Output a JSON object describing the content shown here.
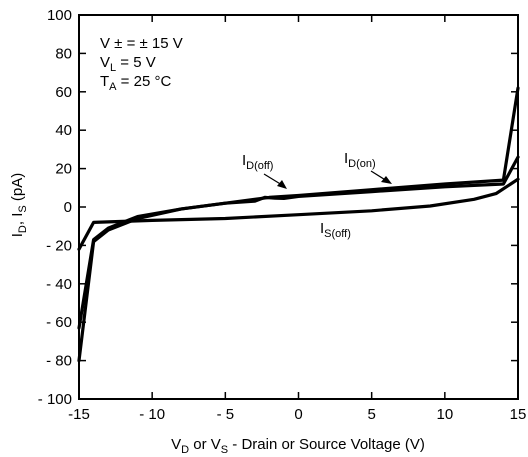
{
  "chart_data": {
    "type": "line",
    "xlabel": "V_D or V_S - Drain or Source Voltage (V)",
    "xlabel_parts": {
      "v1": "V",
      "v1_sub": "D",
      "mid": " or V",
      "v2_sub": "S",
      "rest": " - Drain or Source Voltage (V)"
    },
    "ylabel": "I_D, I_S (pA)",
    "ylabel_parts": {
      "i1": "I",
      "i1_sub": "D",
      "mid": ", I",
      "i2_sub": "S",
      "rest": " (pA)"
    },
    "xlim": [
      -15,
      15
    ],
    "ylim": [
      -100,
      100
    ],
    "x_ticks": [
      -15,
      -10,
      -5,
      0,
      5,
      10,
      15
    ],
    "x_tick_labels": [
      "-15",
      "- 10",
      "- 5",
      "0",
      "5",
      "10",
      "15"
    ],
    "y_ticks": [
      -100,
      -80,
      -60,
      -40,
      -20,
      0,
      20,
      40,
      60,
      80,
      100
    ],
    "y_tick_labels": [
      "- 100",
      "- 80",
      "- 60",
      "- 40",
      "- 20",
      "0",
      "20",
      "40",
      "60",
      "80",
      "100"
    ],
    "grid": false,
    "conditions": [
      {
        "main": "V ± = ± 15 V",
        "sub": "",
        "tail": ""
      },
      {
        "main": "V",
        "sub": "L",
        "tail": " = 5 V"
      },
      {
        "main": "T",
        "sub": "A",
        "tail": " = 25 °C"
      }
    ],
    "series": [
      {
        "name": "I_D(off)",
        "label_main": "I",
        "label_sub": "D(off)",
        "x": [
          -15,
          -14,
          -13,
          -11,
          -8,
          -5,
          -3,
          -2.3,
          -1.6,
          -1,
          0,
          5,
          10,
          14,
          15
        ],
        "y": [
          -63,
          -17,
          -11,
          -5,
          -1,
          2,
          3,
          5,
          4.6,
          4.5,
          5.5,
          8,
          10.5,
          12,
          26
        ]
      },
      {
        "name": "I_D(on)",
        "label_main": "I",
        "label_sub": "D(on)",
        "x": [
          -15,
          -14,
          -13,
          -11,
          -8,
          -5,
          -3,
          -2,
          0,
          5,
          10,
          14,
          15
        ],
        "y": [
          -80,
          -18,
          -12,
          -6,
          -1,
          2,
          4,
          5,
          6,
          9,
          12,
          14,
          62
        ]
      },
      {
        "name": "I_S(off)",
        "label_main": "I",
        "label_sub": "S(off)",
        "x": [
          -15,
          -14,
          -12,
          -10,
          -5,
          0,
          5,
          9,
          12,
          13.5,
          14.5,
          15
        ],
        "y": [
          -22,
          -8,
          -7.5,
          -7,
          -6,
          -4,
          -2,
          0.5,
          4,
          7,
          12,
          14.5
        ]
      }
    ]
  }
}
